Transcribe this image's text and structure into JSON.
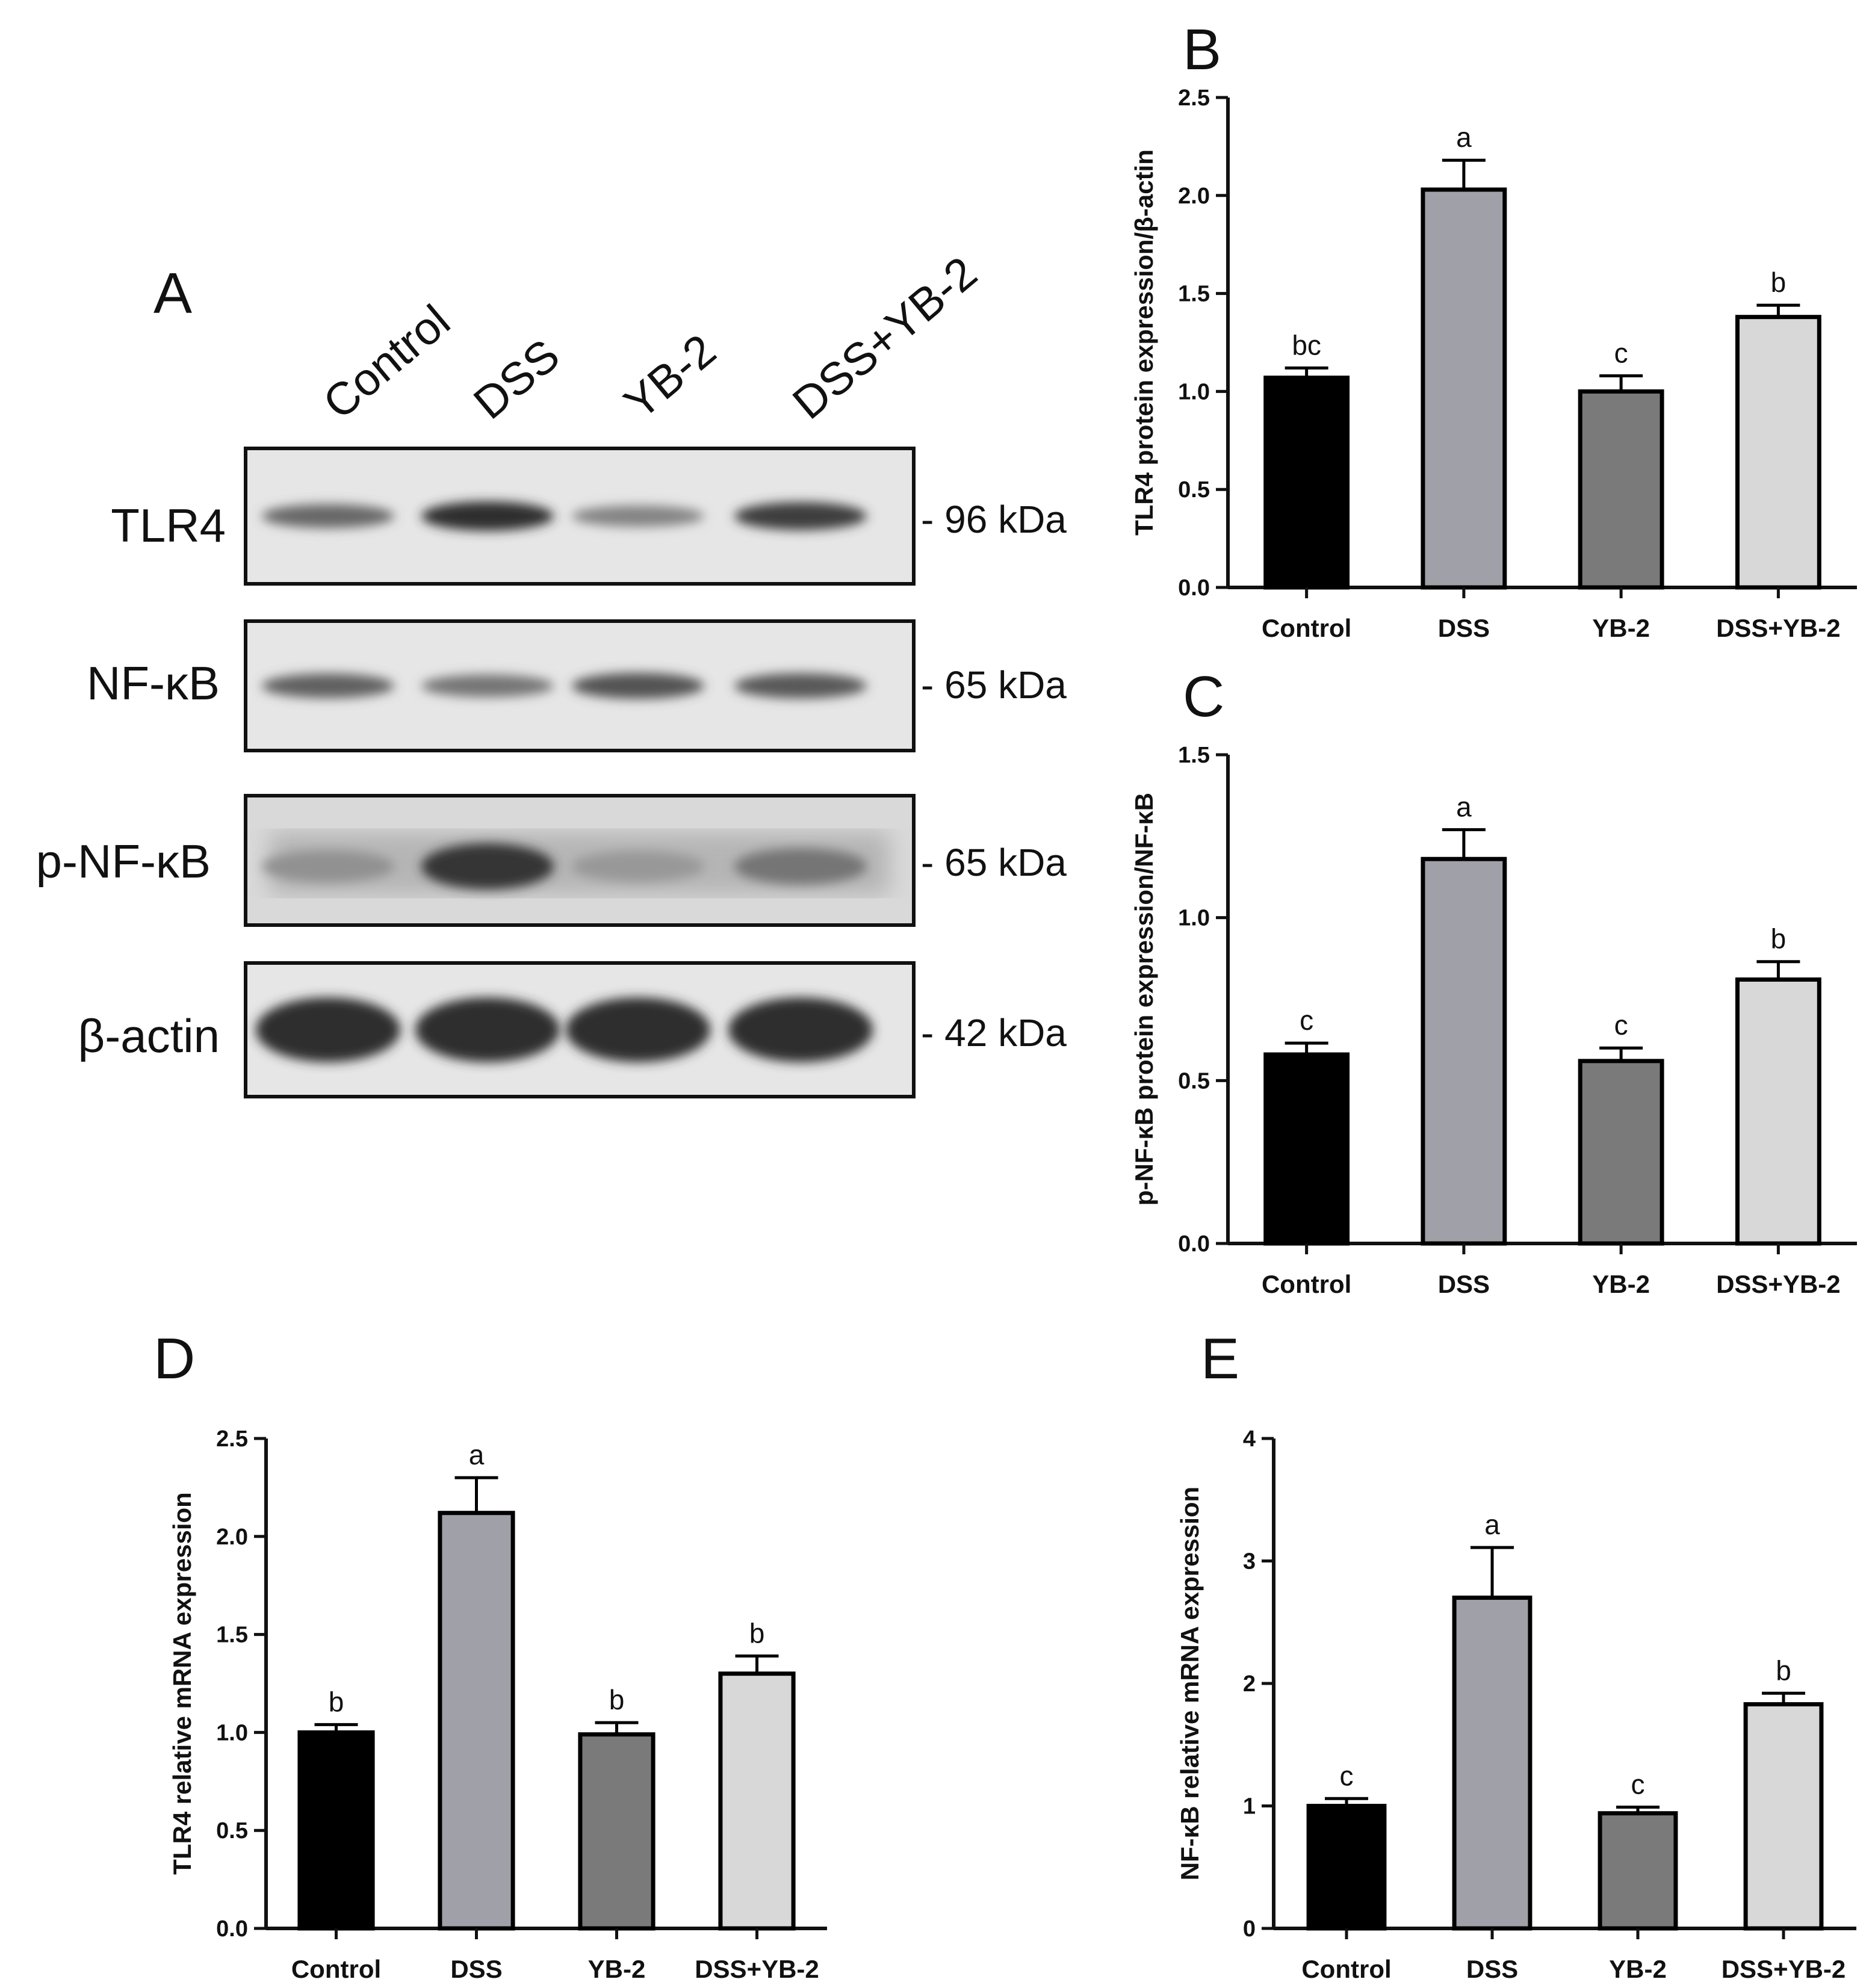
{
  "panel_letters": {
    "a": "A",
    "b": "B",
    "c": "C",
    "d": "D",
    "e": "E"
  },
  "western_blot": {
    "lanes": [
      "Control",
      "DSS",
      "YB-2",
      "DSS+YB-2"
    ],
    "bands": [
      {
        "name": "TLR4",
        "size": "- 96 kDa",
        "intensity": [
          0.55,
          0.95,
          0.35,
          0.85
        ]
      },
      {
        "name": "NF-κB",
        "size": "- 65 kDa",
        "intensity": [
          0.6,
          0.45,
          0.7,
          0.65
        ]
      },
      {
        "name": "p-NF-κB",
        "size": "- 65 kDa",
        "intensity": [
          0.25,
          0.9,
          0.2,
          0.45
        ]
      },
      {
        "name": "β-actin",
        "size": "- 42 kDa",
        "intensity": [
          0.95,
          0.95,
          0.95,
          0.95
        ]
      }
    ]
  },
  "colors": {
    "Control": "#000000",
    "DSS": "#a0a0a8",
    "YB-2": "#7a7a7a",
    "DSS+YB-2": "#d8d8d8"
  },
  "chart_data": [
    {
      "panel": "B",
      "type": "bar",
      "categories": [
        "Control",
        "DSS",
        "YB-2",
        "DSS+YB-2"
      ],
      "values": [
        1.07,
        2.03,
        1.0,
        1.38
      ],
      "errors": [
        0.05,
        0.15,
        0.08,
        0.06
      ],
      "labels": [
        "bc",
        "a",
        "c",
        "b"
      ],
      "ylabel": "TLR4 protein expression/β-actin",
      "ylim": [
        0,
        2.5
      ],
      "yticks": [
        "0.0",
        "0.5",
        "1.0",
        "1.5",
        "2.0",
        "2.5"
      ]
    },
    {
      "panel": "C",
      "type": "bar",
      "categories": [
        "Control",
        "DSS",
        "YB-2",
        "DSS+YB-2"
      ],
      "values": [
        0.58,
        1.18,
        0.56,
        0.81
      ],
      "errors": [
        0.035,
        0.09,
        0.04,
        0.055
      ],
      "labels": [
        "c",
        "a",
        "c",
        "b"
      ],
      "ylabel": "p-NF-κB protein expression/NF-κB",
      "ylim": [
        0,
        1.5
      ],
      "yticks": [
        "0.0",
        "0.5",
        "1.0",
        "1.5"
      ]
    },
    {
      "panel": "D",
      "type": "bar",
      "categories": [
        "Control",
        "DSS",
        "YB-2",
        "DSS+YB-2"
      ],
      "values": [
        1.0,
        2.12,
        0.99,
        1.3
      ],
      "errors": [
        0.04,
        0.18,
        0.06,
        0.09
      ],
      "labels": [
        "b",
        "a",
        "b",
        "b"
      ],
      "ylabel": "TLR4 relative mRNA expression",
      "ylim": [
        0,
        2.5
      ],
      "yticks": [
        "0.0",
        "0.5",
        "1.0",
        "1.5",
        "2.0",
        "2.5"
      ]
    },
    {
      "panel": "E",
      "type": "bar",
      "categories": [
        "Control",
        "DSS",
        "YB-2",
        "DSS+YB-2"
      ],
      "values": [
        1.0,
        2.7,
        0.94,
        1.83
      ],
      "errors": [
        0.06,
        0.41,
        0.05,
        0.09
      ],
      "labels": [
        "c",
        "a",
        "c",
        "b"
      ],
      "ylabel": "NF-κB relative mRNA expression",
      "ylim": [
        0,
        4
      ],
      "yticks": [
        "0",
        "1",
        "2",
        "3",
        "4"
      ]
    }
  ]
}
